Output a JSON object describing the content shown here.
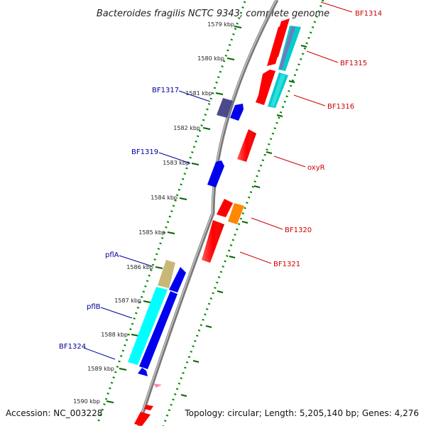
{
  "title": "Bacteroides fragilis NCTC 9343, complete genome",
  "accession": "Accession: NC_003228",
  "topology": "Topology: circular; Length: 5,205,140 bp; Genes: 4,276",
  "ticks": [
    "1579 kbp",
    "1580 kbp",
    "1581 kbp",
    "1582 kbp",
    "1583 kbp",
    "1584 kbp",
    "1585 kbp",
    "1586 kbp",
    "1587 kbp",
    "1588 kbp",
    "1589 kbp",
    "1590 kbp"
  ],
  "genes": [
    {
      "label": "BF1314",
      "strand": "+",
      "color": "#ff0000"
    },
    {
      "label": "BF1315",
      "strand": "+",
      "color": "#00cccc"
    },
    {
      "label": "BF1316",
      "strand": "+",
      "color": "#00cccc"
    },
    {
      "label": "BF1317",
      "strand": "-",
      "color": "#4b4b8c"
    },
    {
      "label": "oxyR",
      "strand": "+",
      "color": "#ff0000"
    },
    {
      "label": "BF1319",
      "strand": "-",
      "color": "#0000ee"
    },
    {
      "label": "BF1320",
      "strand": "+",
      "color": "#ff8800"
    },
    {
      "label": "BF1321",
      "strand": "+",
      "color": "#ff0000"
    },
    {
      "label": "pflA",
      "strand": "-",
      "color": "#c8b878"
    },
    {
      "label": "pflB",
      "strand": "-",
      "color": "#00ffff"
    },
    {
      "label": "BF1324",
      "strand": "-",
      "color": "#0000ee"
    }
  ],
  "colors": {
    "backbone": "#888888",
    "forward_ticks": "#008800",
    "red_label": "#cc0000",
    "blue_label": "#000099"
  }
}
